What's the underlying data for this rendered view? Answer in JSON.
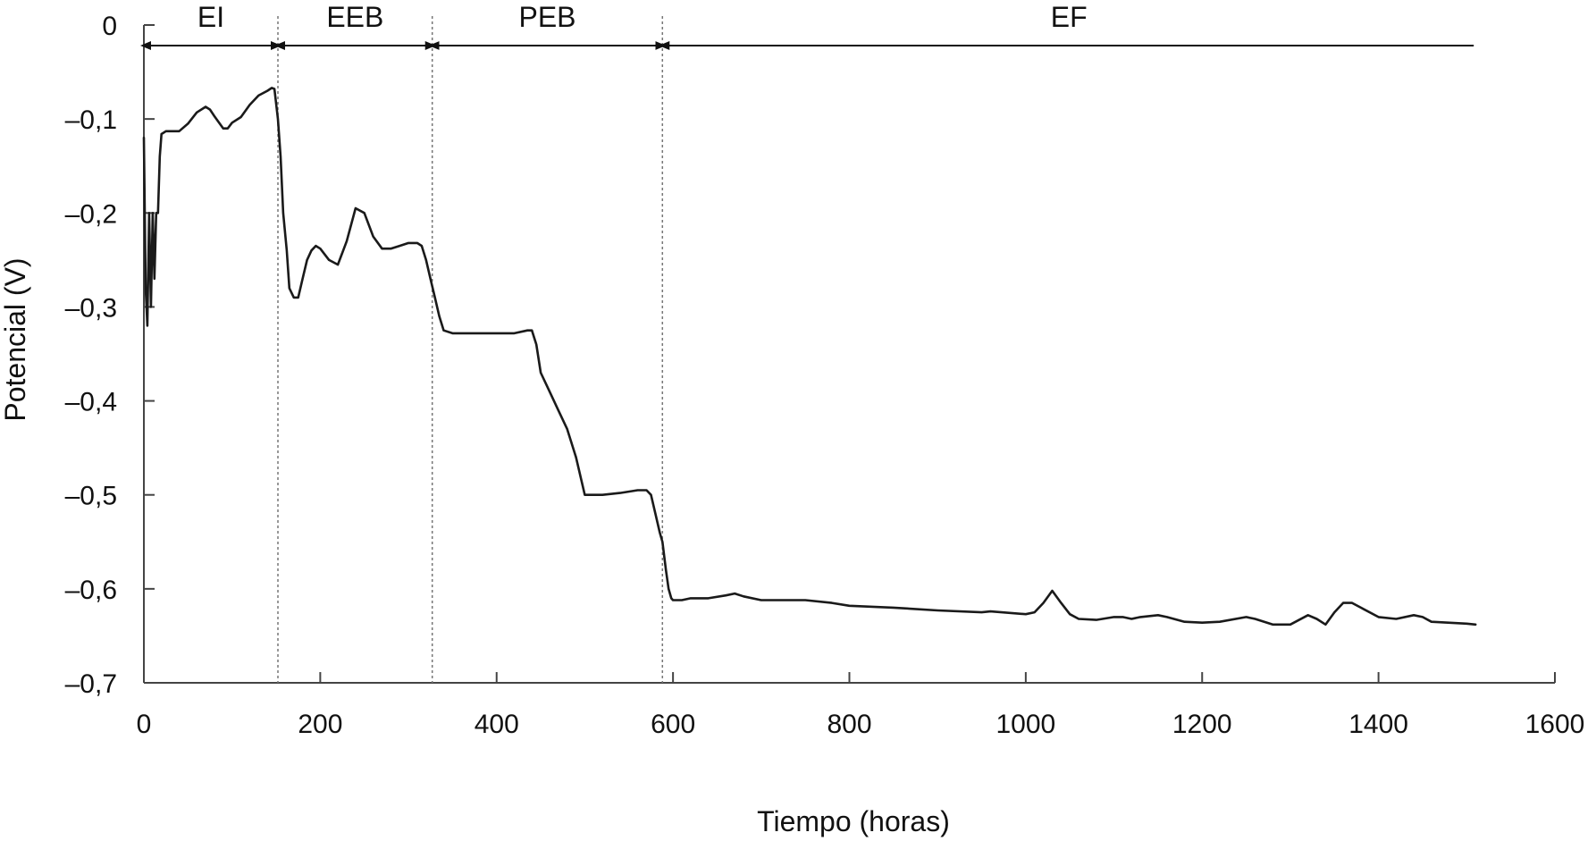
{
  "chart_data": {
    "type": "line",
    "title": "",
    "xlabel": "Tiempo (horas)",
    "ylabel": "Potencial (V)",
    "xlim": [
      0,
      1600
    ],
    "ylim": [
      -0.7,
      0
    ],
    "xticks": [
      0,
      200,
      400,
      600,
      800,
      1000,
      1200,
      1400,
      1600
    ],
    "xtick_labels": [
      "0",
      "200",
      "400",
      "600",
      "800",
      "1000",
      "1200",
      "1400",
      "1600"
    ],
    "yticks": [
      0,
      -0.1,
      -0.2,
      -0.3,
      -0.4,
      -0.5,
      -0.6,
      -0.7
    ],
    "ytick_labels": [
      "0",
      "–0,1",
      "–0,2",
      "–0,3",
      "–0,4",
      "–0,5",
      "–0,6",
      "–0,7"
    ],
    "grid": false,
    "legend": "none",
    "line_color": "#1a1a1a",
    "phases": [
      {
        "label": "EI",
        "start": 0,
        "end": 152
      },
      {
        "label": "EEB",
        "start": 152,
        "end": 327
      },
      {
        "label": "PEB",
        "start": 327,
        "end": 588
      },
      {
        "label": "EF",
        "start": 588,
        "end": 1510
      }
    ],
    "phase_boundaries": [
      152,
      327,
      588
    ],
    "series": [
      {
        "x": [
          0,
          2,
          4,
          6,
          8,
          10,
          12,
          14,
          16,
          18,
          20,
          25,
          30,
          40,
          50,
          60,
          70,
          75,
          80,
          90,
          95,
          100,
          110,
          120,
          130,
          140,
          145,
          148,
          152,
          155,
          158,
          162,
          165,
          170,
          175,
          180,
          185,
          190,
          195,
          200,
          210,
          220,
          230,
          240,
          250,
          260,
          270,
          280,
          290,
          300,
          310,
          315,
          320,
          325,
          330,
          335,
          340,
          350,
          360,
          380,
          400,
          420,
          435,
          440,
          445,
          450,
          460,
          470,
          480,
          490,
          500,
          520,
          540,
          560,
          570,
          575,
          580,
          585,
          588,
          592,
          595,
          598,
          600,
          610,
          620,
          640,
          660,
          670,
          680,
          700,
          750,
          780,
          800,
          850,
          900,
          950,
          960,
          1000,
          1010,
          1020,
          1030,
          1040,
          1050,
          1060,
          1080,
          1100,
          1110,
          1120,
          1130,
          1150,
          1160,
          1180,
          1200,
          1220,
          1250,
          1260,
          1280,
          1300,
          1320,
          1330,
          1340,
          1350,
          1360,
          1370,
          1380,
          1400,
          1420,
          1440,
          1450,
          1460,
          1500,
          1510
        ],
        "y": [
          -0.12,
          -0.28,
          -0.32,
          -0.2,
          -0.3,
          -0.2,
          -0.27,
          -0.2,
          -0.2,
          -0.14,
          -0.116,
          -0.113,
          -0.113,
          -0.113,
          -0.105,
          -0.093,
          -0.087,
          -0.09,
          -0.097,
          -0.11,
          -0.11,
          -0.104,
          -0.098,
          -0.085,
          -0.075,
          -0.07,
          -0.067,
          -0.068,
          -0.1,
          -0.14,
          -0.2,
          -0.24,
          -0.28,
          -0.29,
          -0.29,
          -0.27,
          -0.25,
          -0.24,
          -0.235,
          -0.238,
          -0.25,
          -0.255,
          -0.23,
          -0.195,
          -0.2,
          -0.225,
          -0.238,
          -0.238,
          -0.235,
          -0.232,
          -0.232,
          -0.235,
          -0.25,
          -0.27,
          -0.29,
          -0.31,
          -0.325,
          -0.328,
          -0.328,
          -0.328,
          -0.328,
          -0.328,
          -0.325,
          -0.325,
          -0.34,
          -0.37,
          -0.39,
          -0.41,
          -0.43,
          -0.46,
          -0.5,
          -0.5,
          -0.498,
          -0.495,
          -0.495,
          -0.5,
          -0.52,
          -0.54,
          -0.55,
          -0.58,
          -0.6,
          -0.61,
          -0.612,
          -0.612,
          -0.61,
          -0.61,
          -0.607,
          -0.605,
          -0.608,
          -0.612,
          -0.612,
          -0.615,
          -0.618,
          -0.62,
          -0.623,
          -0.625,
          -0.624,
          -0.627,
          -0.625,
          -0.615,
          -0.602,
          -0.615,
          -0.627,
          -0.632,
          -0.633,
          -0.63,
          -0.63,
          -0.632,
          -0.63,
          -0.628,
          -0.63,
          -0.635,
          -0.636,
          -0.635,
          -0.63,
          -0.632,
          -0.638,
          -0.638,
          -0.628,
          -0.632,
          -0.638,
          -0.625,
          -0.615,
          -0.615,
          -0.62,
          -0.63,
          -0.632,
          -0.628,
          -0.63,
          -0.635,
          -0.637,
          -0.638
        ]
      }
    ]
  }
}
